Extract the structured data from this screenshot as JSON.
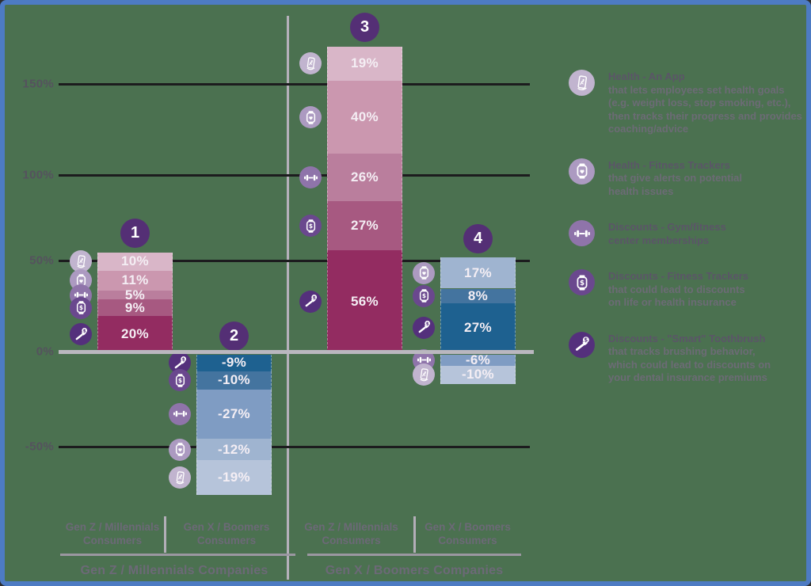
{
  "colors": {
    "background": "#4b7150",
    "border": "#4d7bc3",
    "gridline": "#1c1c1e",
    "zero_line": "#bab7bf",
    "divider": "#b5b0ba",
    "axis_text": "#55525e",
    "group_text": "#6c6977",
    "legend_title_text": "#5b5568",
    "legend_desc_text": "#6f6b79",
    "segment_text": "#f4eef4",
    "badge": "#542f75",
    "pink_shades": [
      "#d9b6c8",
      "#cb97af",
      "#ba7e9d",
      "#a75981",
      "#932c61"
    ],
    "blue_shades": [
      "#b6c4da",
      "#9fb4d0",
      "#7f9cc3",
      "#44749f",
      "#1e6190"
    ],
    "icon_shades": [
      "#c1b4cf",
      "#ac9ac1",
      "#8f74aa",
      "#6a488e",
      "#54307c"
    ]
  },
  "y_axis": {
    "ticks": [
      "150%",
      "100%",
      "50%",
      "0%",
      "-50%"
    ]
  },
  "x_axis": {
    "consumers": [
      "Gen Z / Millennials\nConsumers",
      "Gen X / Boomers\nConsumers",
      "Gen Z / Millennials\nConsumers",
      "Gen X / Boomers\nConsumers"
    ],
    "companies": [
      "Gen Z / Millennials Companies",
      "Gen X / Boomers Companies"
    ]
  },
  "chart_data": {
    "type": "bar",
    "stacked": true,
    "unit": "%",
    "y_ticks": [
      150,
      100,
      50,
      0,
      -50
    ],
    "ylim": [
      -55,
      175
    ],
    "grid": true,
    "legend_position": "right",
    "categories": [
      {
        "id": "health-app",
        "label": "Health - An App"
      },
      {
        "id": "health-fitness-tracker",
        "label": "Health - Fitness Trackers"
      },
      {
        "id": "discounts-gym",
        "label": "Discounts - Gym/fitness center memberships"
      },
      {
        "id": "discounts-fitness-tracker",
        "label": "Discounts - Fitness Trackers"
      },
      {
        "id": "discounts-toothbrush",
        "label": "Discounts - Smart Toothbrush"
      }
    ],
    "bars": [
      {
        "number": "1",
        "company": "Gen Z / Millennials Companies",
        "consumer": "Gen Z / Millennials Consumers",
        "palette": "pink",
        "segments": [
          {
            "category": "health-app",
            "value": 10,
            "label": "10%"
          },
          {
            "category": "health-fitness-tracker",
            "value": 11,
            "label": "11%"
          },
          {
            "category": "discounts-gym",
            "value": 5,
            "label": "5%"
          },
          {
            "category": "discounts-fitness-tracker",
            "value": 9,
            "label": "9%"
          },
          {
            "category": "discounts-toothbrush",
            "value": 20,
            "label": "20%"
          }
        ]
      },
      {
        "number": "2",
        "company": "Gen Z / Millennials Companies",
        "consumer": "Gen X / Boomers Consumers",
        "palette": "blue",
        "segments": [
          {
            "category": "discounts-toothbrush",
            "value": -9,
            "label": "-9%"
          },
          {
            "category": "discounts-fitness-tracker",
            "value": -10,
            "label": "-10%"
          },
          {
            "category": "discounts-gym",
            "value": -27,
            "label": "-27%"
          },
          {
            "category": "health-fitness-tracker",
            "value": -12,
            "label": "-12%"
          },
          {
            "category": "health-app",
            "value": -19,
            "label": "-19%"
          }
        ]
      },
      {
        "number": "3",
        "company": "Gen X / Boomers Companies",
        "consumer": "Gen Z / Millennials Consumers",
        "palette": "pink",
        "segments": [
          {
            "category": "health-app",
            "value": 19,
            "label": "19%"
          },
          {
            "category": "health-fitness-tracker",
            "value": 40,
            "label": "40%"
          },
          {
            "category": "discounts-gym",
            "value": 26,
            "label": "26%"
          },
          {
            "category": "discounts-fitness-tracker",
            "value": 27,
            "label": "27%"
          },
          {
            "category": "discounts-toothbrush",
            "value": 56,
            "label": "56%"
          }
        ]
      },
      {
        "number": "4",
        "company": "Gen X / Boomers Companies",
        "consumer": "Gen X / Boomers Consumers",
        "palette": "blue",
        "segments": [
          {
            "category": "health-fitness-tracker",
            "value": 17,
            "label": "17%"
          },
          {
            "category": "discounts-fitness-tracker",
            "value": 8,
            "label": "8%"
          },
          {
            "category": "discounts-toothbrush",
            "value": 27,
            "label": "27%"
          },
          {
            "category": "discounts-gym",
            "value": -6,
            "label": "-6%"
          },
          {
            "category": "health-app",
            "value": -10,
            "label": "-10%"
          }
        ]
      }
    ]
  },
  "legend": {
    "items": [
      {
        "icon": "health-app",
        "title": "Health - An App",
        "description": "that lets employees set health goals\n(e.g. weight loss, stop smoking, etc.),\nthen tracks their progress and provides\ncoaching/advice"
      },
      {
        "icon": "health-fitness-tracker",
        "title": "Health - Fitness Trackers",
        "description": "that give alerts on potential\nhealth issues"
      },
      {
        "icon": "discounts-gym",
        "title": "Discounts - Gym/fitness\ncenter memberships",
        "description": ""
      },
      {
        "icon": "discounts-fitness-tracker",
        "title": "Discounts - Fitness Trackers",
        "description": "that could lead to discounts\non life or health insurance"
      },
      {
        "icon": "discounts-toothbrush",
        "title": "Discounts - \"Smart\" Toothbrush",
        "description": "that tracks brushing behavior,\nwhich could lead to discounts on\nyour dental insurance premiums"
      }
    ]
  }
}
